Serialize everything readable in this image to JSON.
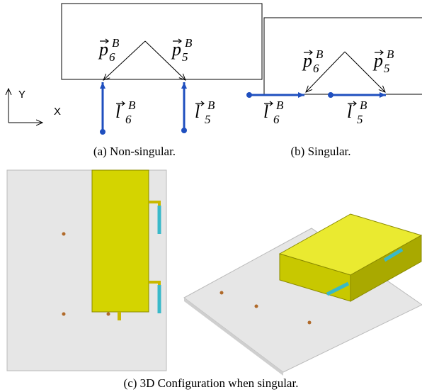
{
  "panel_a": {
    "caption": "(a) Non-singular.",
    "axis_y": "Y",
    "axis_x": "X",
    "labels": [
      {
        "symbol": "p",
        "sub": "6",
        "sup": "B"
      },
      {
        "symbol": "p",
        "sub": "5",
        "sup": "B"
      },
      {
        "symbol": "l",
        "sub": "6",
        "sup": "B"
      },
      {
        "symbol": "l",
        "sub": "5",
        "sup": "B"
      }
    ]
  },
  "panel_b": {
    "caption": "(b) Singular.",
    "labels": [
      {
        "symbol": "p",
        "sub": "6",
        "sup": "B"
      },
      {
        "symbol": "p",
        "sub": "5",
        "sup": "B"
      },
      {
        "symbol": "l",
        "sub": "6",
        "sup": "B"
      },
      {
        "symbol": "l",
        "sub": "5",
        "sup": "B"
      }
    ]
  },
  "panel_c": {
    "caption": "(c) 3D Configuration when singular."
  }
}
